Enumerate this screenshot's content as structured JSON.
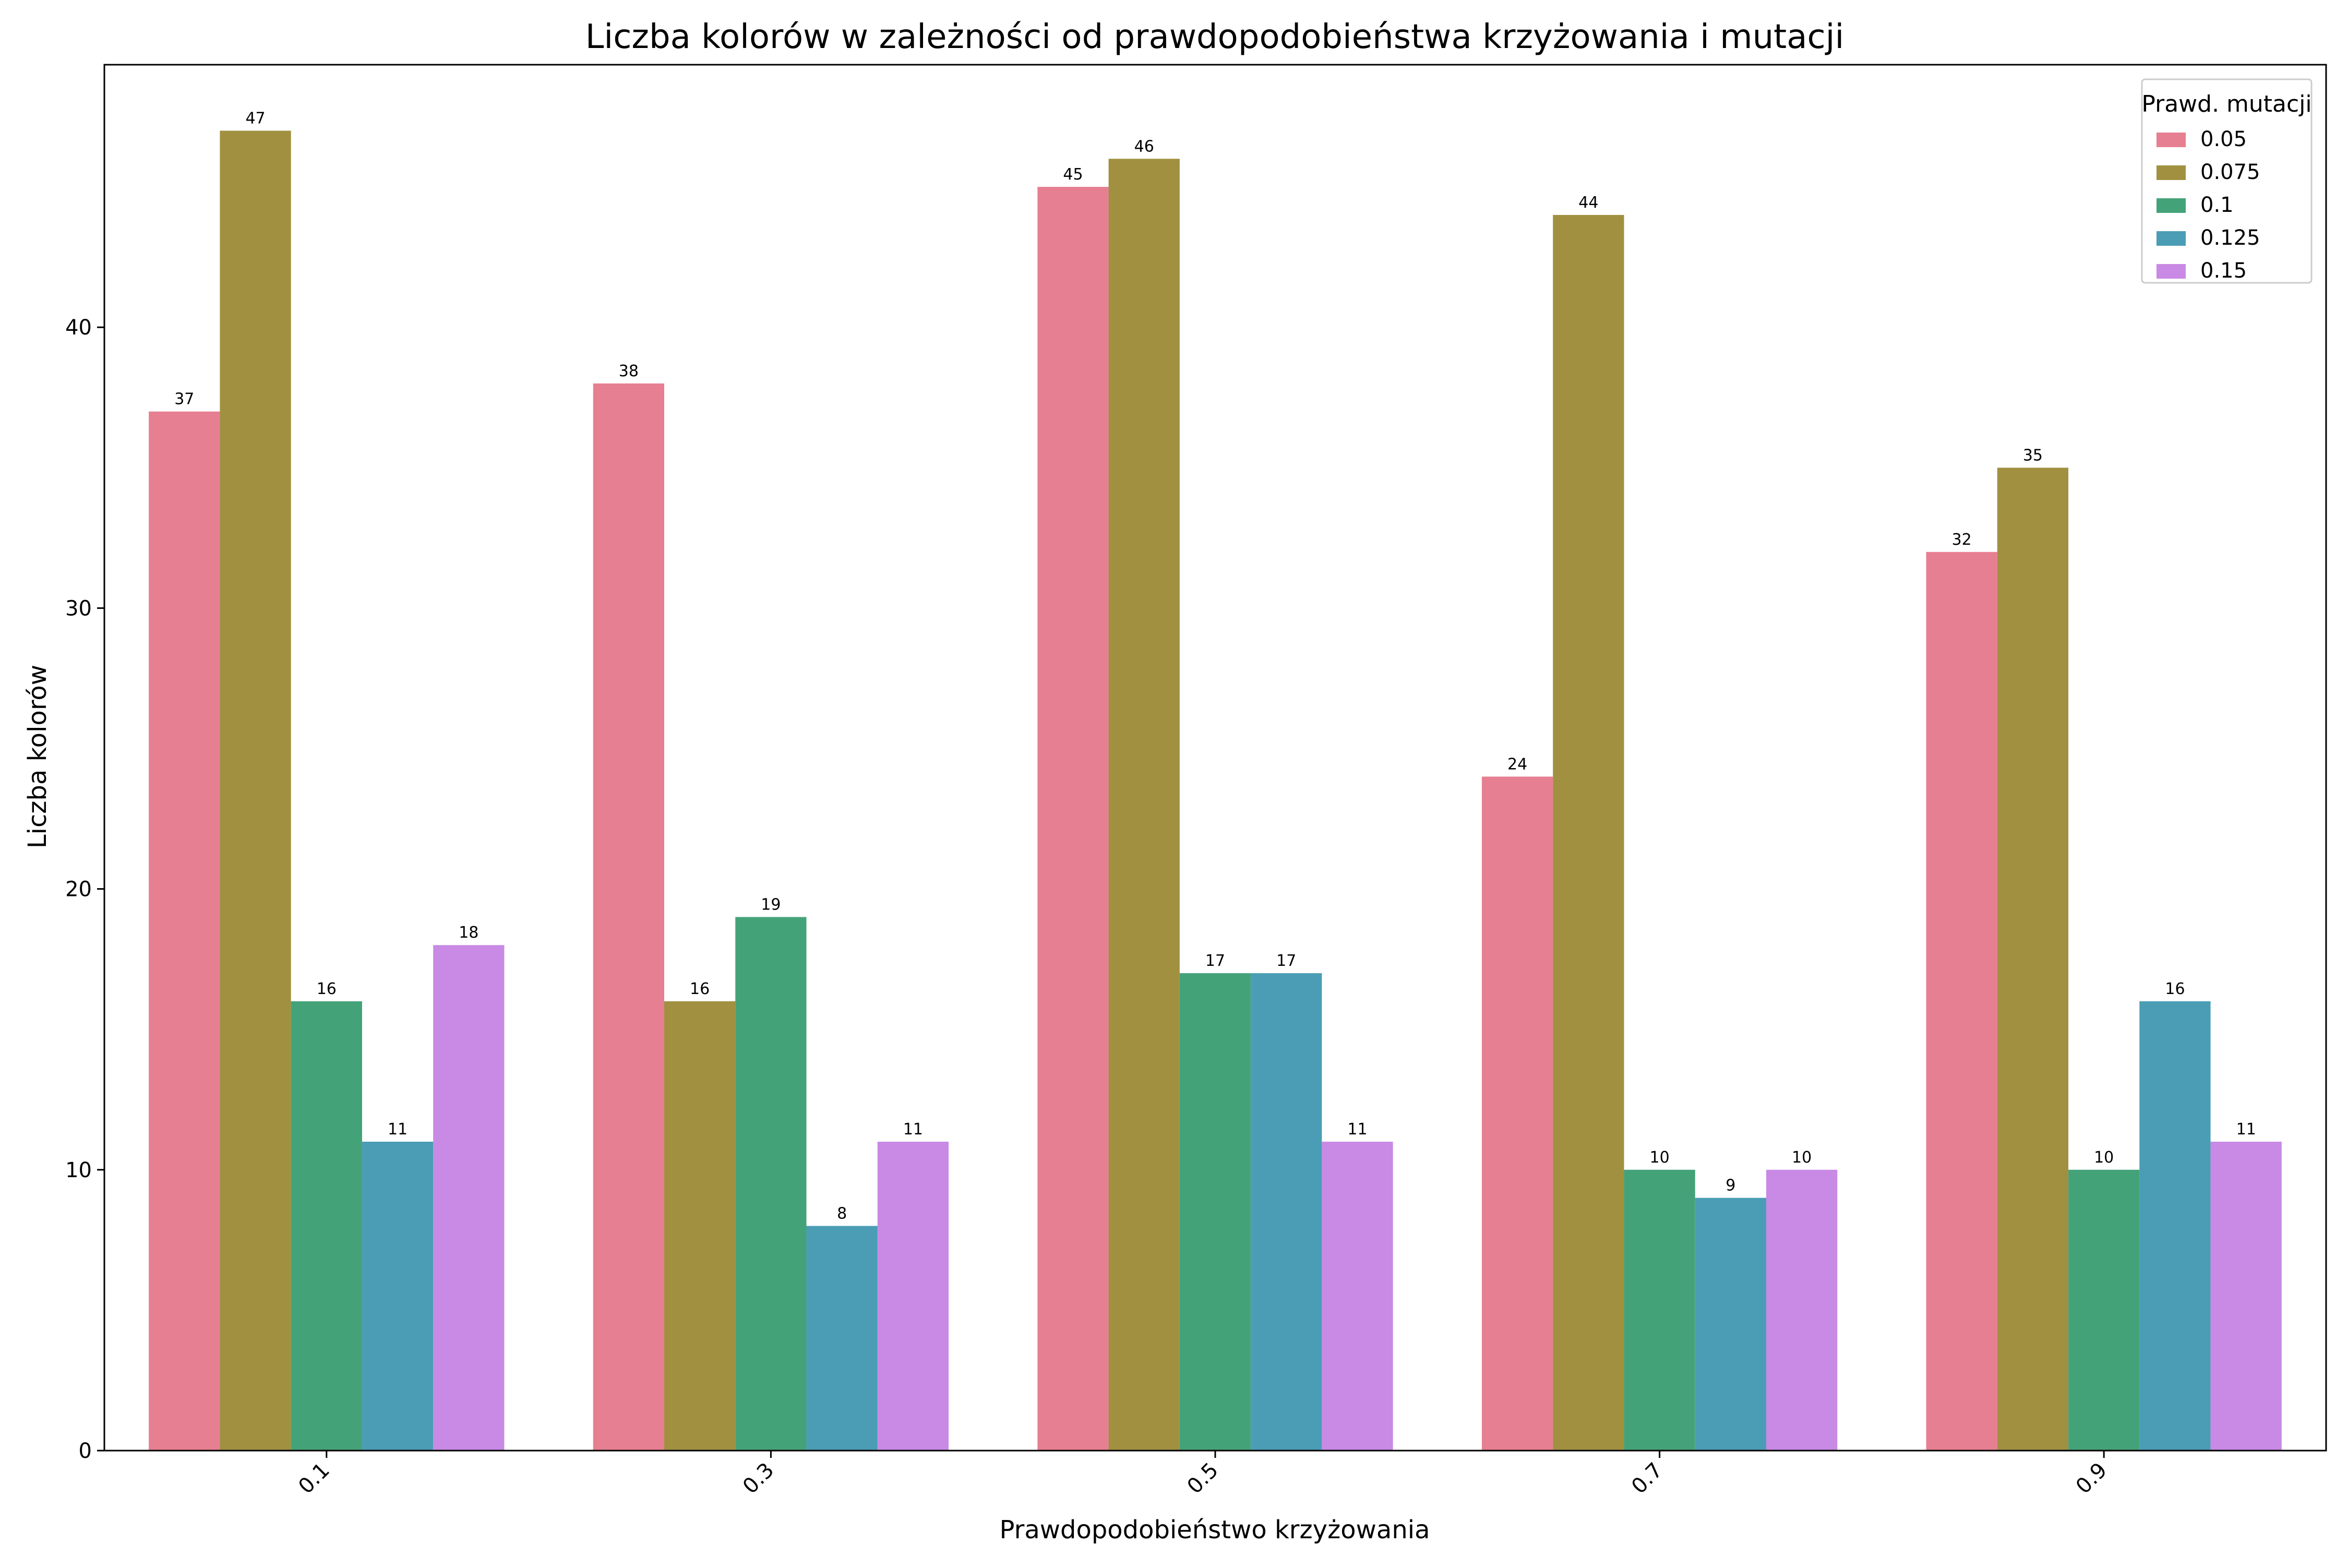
{
  "chart_data": {
    "type": "bar",
    "title": "Liczba kolorów w zależności od prawdopodobieństwa krzyżowania i mutacji",
    "xlabel": "Prawdopodobieństwo krzyżowania",
    "ylabel": "Liczba kolorów",
    "categories": [
      "0.1",
      "0.3",
      "0.5",
      "0.7",
      "0.9"
    ],
    "ylim": [
      0,
      49.35
    ],
    "yticks": [
      0,
      10,
      20,
      30,
      40
    ],
    "grid": false,
    "legend": {
      "title": "Prawd. mutacji",
      "placement": "top-right"
    },
    "series": [
      {
        "name": "0.05",
        "color": "#e67f91",
        "values": [
          37,
          38,
          45,
          24,
          32
        ]
      },
      {
        "name": "0.075",
        "color": "#a09040",
        "values": [
          47,
          16,
          46,
          44,
          35
        ]
      },
      {
        "name": "0.1",
        "color": "#44a279",
        "values": [
          16,
          19,
          17,
          10,
          10
        ]
      },
      {
        "name": "0.125",
        "color": "#4a9db4",
        "values": [
          11,
          8,
          17,
          9,
          16
        ]
      },
      {
        "name": "0.15",
        "color": "#c88ae4",
        "values": [
          18,
          11,
          11,
          10,
          11
        ]
      }
    ]
  }
}
